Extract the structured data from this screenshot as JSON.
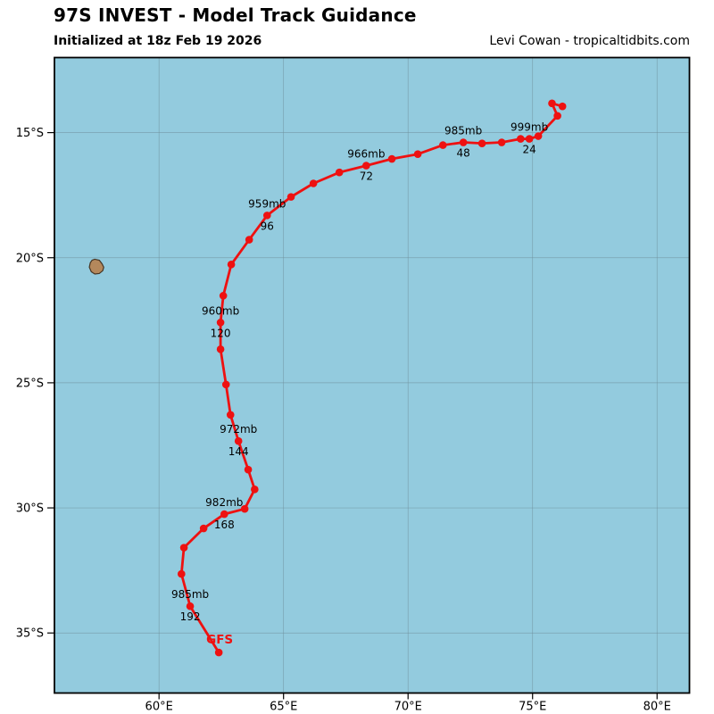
{
  "header": {
    "title": "97S INVEST - Model Track Guidance",
    "subtitle": "Initialized at 18z Feb 19 2026",
    "credit": "Levi Cowan - tropicaltidbits.com"
  },
  "chart_data": {
    "type": "line",
    "title": "97S INVEST - Model Track Guidance",
    "map": {
      "lon_range": [
        55.8,
        81.3
      ],
      "lat_range": [
        -37.4,
        -12.0
      ],
      "grid": true,
      "x_ticks": [
        {
          "label": "60°E",
          "lon": 60
        },
        {
          "label": "65°E",
          "lon": 65
        },
        {
          "label": "70°E",
          "lon": 70
        },
        {
          "label": "75°E",
          "lon": 75
        },
        {
          "label": "80°E",
          "lon": 80
        }
      ],
      "y_ticks": [
        {
          "label": "15°S",
          "lat": -15
        },
        {
          "label": "20°S",
          "lat": -20
        },
        {
          "label": "25°S",
          "lat": -25
        },
        {
          "label": "30°S",
          "lat": -30
        },
        {
          "label": "35°S",
          "lat": -35
        }
      ]
    },
    "colors": {
      "ocean": "#93cbde",
      "grid": "#6d8d99",
      "frame": "#000000",
      "track": "#ee1111",
      "island_fill": "#b4885c",
      "island_stroke": "#463524",
      "label_text": "#000000"
    },
    "island_outline": [
      [
        57.42,
        -20.06
      ],
      [
        57.6,
        -20.1
      ],
      [
        57.71,
        -20.24
      ],
      [
        57.78,
        -20.38
      ],
      [
        57.74,
        -20.52
      ],
      [
        57.6,
        -20.63
      ],
      [
        57.42,
        -20.65
      ],
      [
        57.28,
        -20.56
      ],
      [
        57.2,
        -20.38
      ],
      [
        57.24,
        -20.2
      ],
      [
        57.31,
        -20.1
      ]
    ],
    "track": {
      "model": "GFS",
      "points": [
        {
          "hour": 0,
          "lon": 76.2,
          "lat": -13.95
        },
        {
          "hour": 6,
          "lon": 75.78,
          "lat": -13.83
        },
        {
          "hour": 12,
          "lon": 76.0,
          "lat": -14.33
        },
        {
          "hour": 18,
          "lon": 75.23,
          "lat": -15.14
        },
        {
          "hour": 24,
          "lon": 74.87,
          "lat": -15.25
        },
        {
          "hour": 30,
          "lon": 74.52,
          "lat": -15.25
        },
        {
          "hour": 36,
          "lon": 73.76,
          "lat": -15.39
        },
        {
          "hour": 42,
          "lon": 72.97,
          "lat": -15.43
        },
        {
          "hour": 48,
          "lon": 72.22,
          "lat": -15.39
        },
        {
          "hour": 54,
          "lon": 71.4,
          "lat": -15.5
        },
        {
          "hour": 60,
          "lon": 70.39,
          "lat": -15.86
        },
        {
          "hour": 66,
          "lon": 69.35,
          "lat": -16.05
        },
        {
          "hour": 72,
          "lon": 68.32,
          "lat": -16.32
        },
        {
          "hour": 78,
          "lon": 67.24,
          "lat": -16.59
        },
        {
          "hour": 84,
          "lon": 66.2,
          "lat": -17.03
        },
        {
          "hour": 90,
          "lon": 65.3,
          "lat": -17.57
        },
        {
          "hour": 96,
          "lon": 64.34,
          "lat": -18.31
        },
        {
          "hour": 102,
          "lon": 63.62,
          "lat": -19.28
        },
        {
          "hour": 108,
          "lon": 62.9,
          "lat": -20.27
        },
        {
          "hour": 114,
          "lon": 62.58,
          "lat": -21.52
        },
        {
          "hour": 120,
          "lon": 62.47,
          "lat": -22.59
        },
        {
          "hour": 126,
          "lon": 62.47,
          "lat": -23.66
        },
        {
          "hour": 132,
          "lon": 62.69,
          "lat": -25.07
        },
        {
          "hour": 138,
          "lon": 62.87,
          "lat": -26.28
        },
        {
          "hour": 144,
          "lon": 63.19,
          "lat": -27.33
        },
        {
          "hour": 150,
          "lon": 63.58,
          "lat": -28.47
        },
        {
          "hour": 156,
          "lon": 63.84,
          "lat": -29.26
        },
        {
          "hour": 162,
          "lon": 63.44,
          "lat": -30.04
        },
        {
          "hour": 168,
          "lon": 62.62,
          "lat": -30.25
        },
        {
          "hour": 174,
          "lon": 61.79,
          "lat": -30.82
        },
        {
          "hour": 180,
          "lon": 61.0,
          "lat": -31.59
        },
        {
          "hour": 186,
          "lon": 60.9,
          "lat": -32.64
        },
        {
          "hour": 192,
          "lon": 61.25,
          "lat": -33.93
        },
        {
          "hour": 198,
          "lon": 62.4,
          "lat": -35.78
        }
      ],
      "annotations": [
        {
          "hour": 24,
          "pressure": "999mb"
        },
        {
          "hour": 48,
          "pressure": "985mb"
        },
        {
          "hour": 72,
          "pressure": "966mb"
        },
        {
          "hour": 96,
          "pressure": "959mb"
        },
        {
          "hour": 120,
          "pressure": "960mb"
        },
        {
          "hour": 144,
          "pressure": "972mb"
        },
        {
          "hour": 168,
          "pressure": "982mb"
        },
        {
          "hour": 192,
          "pressure": "985mb"
        }
      ]
    }
  }
}
